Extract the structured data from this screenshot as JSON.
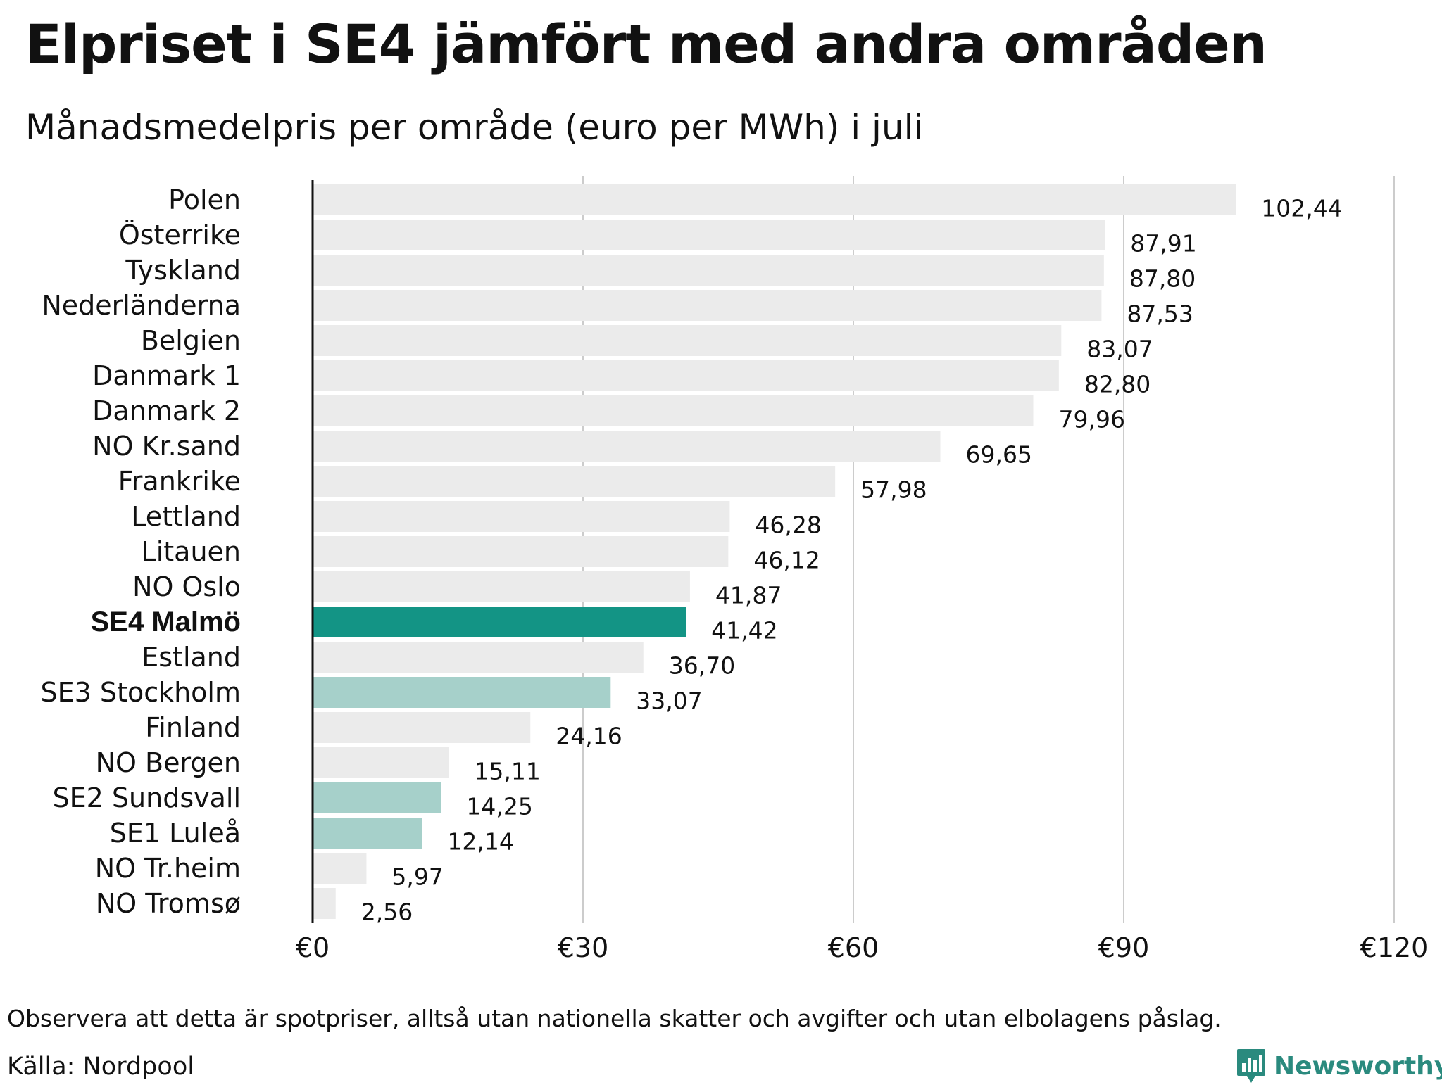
{
  "title": "Elpriset i SE4 jämfört med andra områden",
  "subtitle": "Månadsmedelpris per område (euro per MWh) i juli",
  "note": "Observera att detta är spotpriser, alltså utan nationella skatter och avgifter och utan elbolagens påslag.",
  "source": "Källa: Nordpool",
  "brand": {
    "name": "Newsworthy",
    "icon": "newsworthy-logo-icon"
  },
  "colors": {
    "default_bar": "#ebebeb",
    "highlight_bar": "#139485",
    "swedish_bar": "#a6d0ca",
    "gridline": "#cccccc",
    "axis": "#111111",
    "brand": "#2a8a7e"
  },
  "chart_data": {
    "type": "bar",
    "orientation": "horizontal",
    "categories": [
      "Polen",
      "Österrike",
      "Tyskland",
      "Nederländerna",
      "Belgien",
      "Danmark  1",
      "Danmark  2",
      "NO Kr.sand",
      "Frankrike",
      "Lettland",
      "Litauen",
      "NO Oslo",
      "SE4 Malmö",
      "Estland",
      "SE3  Stockholm",
      "Finland",
      "NO Bergen",
      "SE2  Sundsvall",
      "SE1  Luleå",
      "NO Tr.heim",
      "NO Tromsø"
    ],
    "values": [
      102.44,
      87.91,
      87.8,
      87.53,
      83.07,
      82.8,
      79.96,
      69.65,
      57.98,
      46.28,
      46.12,
      41.87,
      41.42,
      36.7,
      33.07,
      24.16,
      15.11,
      14.25,
      12.14,
      5.97,
      2.56
    ],
    "value_labels": [
      "102,44",
      "87,91",
      "87,80",
      "87,53",
      "83,07",
      "82,80",
      "79,96",
      "69,65",
      "57,98",
      "46,28",
      "46,12",
      "41,87",
      "41,42",
      "36,70",
      "33,07",
      "24,16",
      "15,11",
      "14,25",
      "12,14",
      "5,97",
      "2,56"
    ],
    "bar_style": [
      "default",
      "default",
      "default",
      "default",
      "default",
      "default",
      "default",
      "default",
      "default",
      "default",
      "default",
      "default",
      "highlight",
      "default",
      "swedish",
      "default",
      "default",
      "swedish",
      "swedish",
      "default",
      "default"
    ],
    "highlight_category": "SE4 Malmö",
    "xlim": [
      0,
      120
    ],
    "x_ticks": [
      0,
      30,
      60,
      90,
      120
    ],
    "x_tick_labels": [
      "€0",
      "€30",
      "€60",
      "€90",
      "€120"
    ],
    "grid": "vertical",
    "legend": "none"
  }
}
